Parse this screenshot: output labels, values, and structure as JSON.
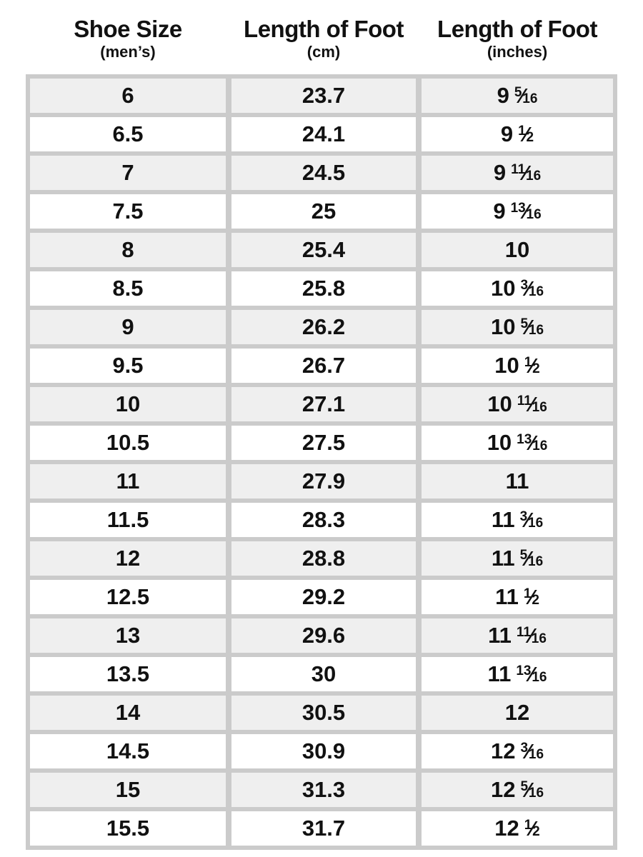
{
  "header": {
    "columns": [
      {
        "title": "Shoe Size",
        "subtitle": "(men’s)"
      },
      {
        "title": "Length of Foot",
        "subtitle": "(cm)"
      },
      {
        "title": "Length of Foot",
        "subtitle": "(inches)"
      }
    ]
  },
  "colors": {
    "background": "#ffffff",
    "row_shaded": "#efefef",
    "row_plain": "#ffffff",
    "grid_lines": "#cbcbcb",
    "text": "#111111"
  },
  "rows": [
    {
      "size": "6",
      "cm": "23.7",
      "inches": {
        "whole": "9",
        "num": "5",
        "den": "16"
      }
    },
    {
      "size": "6.5",
      "cm": "24.1",
      "inches": {
        "whole": "9",
        "num": "1",
        "den": "2"
      }
    },
    {
      "size": "7",
      "cm": "24.5",
      "inches": {
        "whole": "9",
        "num": "11",
        "den": "16"
      }
    },
    {
      "size": "7.5",
      "cm": "25",
      "inches": {
        "whole": "9",
        "num": "13",
        "den": "16"
      }
    },
    {
      "size": "8",
      "cm": "25.4",
      "inches": {
        "whole": "10"
      }
    },
    {
      "size": "8.5",
      "cm": "25.8",
      "inches": {
        "whole": "10",
        "num": "3",
        "den": "16"
      }
    },
    {
      "size": "9",
      "cm": "26.2",
      "inches": {
        "whole": "10",
        "num": "5",
        "den": "16"
      }
    },
    {
      "size": "9.5",
      "cm": "26.7",
      "inches": {
        "whole": "10",
        "num": "1",
        "den": "2"
      }
    },
    {
      "size": "10",
      "cm": "27.1",
      "inches": {
        "whole": "10",
        "num": "11",
        "den": "16"
      }
    },
    {
      "size": "10.5",
      "cm": "27.5",
      "inches": {
        "whole": "10",
        "num": "13",
        "den": "16"
      }
    },
    {
      "size": "11",
      "cm": "27.9",
      "inches": {
        "whole": "11"
      }
    },
    {
      "size": "11.5",
      "cm": "28.3",
      "inches": {
        "whole": "11",
        "num": "3",
        "den": "16"
      }
    },
    {
      "size": "12",
      "cm": "28.8",
      "inches": {
        "whole": "11",
        "num": "5",
        "den": "16"
      }
    },
    {
      "size": "12.5",
      "cm": "29.2",
      "inches": {
        "whole": "11",
        "num": "1",
        "den": "2"
      }
    },
    {
      "size": "13",
      "cm": "29.6",
      "inches": {
        "whole": "11",
        "num": "11",
        "den": "16"
      }
    },
    {
      "size": "13.5",
      "cm": "30",
      "inches": {
        "whole": "11",
        "num": "13",
        "den": "16"
      }
    },
    {
      "size": "14",
      "cm": "30.5",
      "inches": {
        "whole": "12"
      }
    },
    {
      "size": "14.5",
      "cm": "30.9",
      "inches": {
        "whole": "12",
        "num": "3",
        "den": "16"
      }
    },
    {
      "size": "15",
      "cm": "31.3",
      "inches": {
        "whole": "12",
        "num": "5",
        "den": "16"
      }
    },
    {
      "size": "15.5",
      "cm": "31.7",
      "inches": {
        "whole": "12",
        "num": "1",
        "den": "2"
      }
    }
  ],
  "chart_data": {
    "type": "table",
    "title": "Men's shoe size to foot length conversion",
    "columns": [
      "Shoe Size (men's)",
      "Length of Foot (cm)",
      "Length of Foot (inches)"
    ],
    "rows": [
      [
        "6",
        "23.7",
        "9 5/16"
      ],
      [
        "6.5",
        "24.1",
        "9 1/2"
      ],
      [
        "7",
        "24.5",
        "9 11/16"
      ],
      [
        "7.5",
        "25",
        "9 13/16"
      ],
      [
        "8",
        "25.4",
        "10"
      ],
      [
        "8.5",
        "25.8",
        "10 3/16"
      ],
      [
        "9",
        "26.2",
        "10 5/16"
      ],
      [
        "9.5",
        "26.7",
        "10 1/2"
      ],
      [
        "10",
        "27.1",
        "10 11/16"
      ],
      [
        "10.5",
        "27.5",
        "10 13/16"
      ],
      [
        "11",
        "27.9",
        "11"
      ],
      [
        "11.5",
        "28.3",
        "11 3/16"
      ],
      [
        "12",
        "28.8",
        "11 5/16"
      ],
      [
        "12.5",
        "29.2",
        "11 1/2"
      ],
      [
        "13",
        "29.6",
        "11 11/16"
      ],
      [
        "13.5",
        "30",
        "11 13/16"
      ],
      [
        "14",
        "30.5",
        "12"
      ],
      [
        "14.5",
        "30.9",
        "12 3/16"
      ],
      [
        "15",
        "31.3",
        "12 5/16"
      ],
      [
        "15.5",
        "31.7",
        "12 1/2"
      ]
    ]
  }
}
